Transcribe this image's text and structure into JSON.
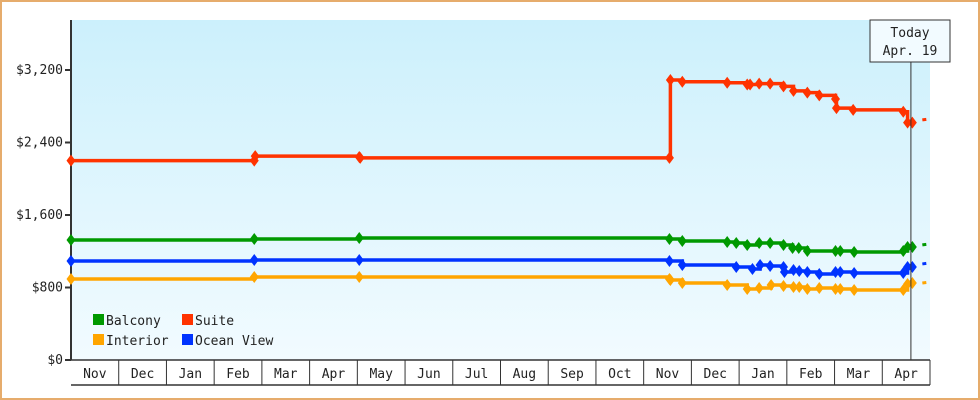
{
  "chart_data": {
    "type": "line",
    "line_style": "step",
    "x_unit": "months from start of first Nov",
    "x_tick_labels": [
      "Nov",
      "Dec",
      "Jan",
      "Feb",
      "Mar",
      "Apr",
      "May",
      "Jun",
      "Jul",
      "Aug",
      "Sep",
      "Oct",
      "Nov",
      "Dec",
      "Jan",
      "Feb",
      "Mar",
      "Apr"
    ],
    "y_ticks": [
      0,
      800,
      1600,
      2400,
      3200
    ],
    "y_tick_labels": [
      "$0",
      "$800",
      "$1,600",
      "$2,400",
      "$3,200"
    ],
    "ylim": [
      0,
      3200
    ],
    "grid": false,
    "legend_placement": "bottom-left",
    "today": {
      "label": "Today",
      "date": "Apr. 19",
      "x": 17.6
    },
    "series": [
      {
        "name": "Suite",
        "color": "#ff3300",
        "projection": 2650,
        "points": [
          [
            0,
            2200
          ],
          [
            3.84,
            2200
          ],
          [
            3.86,
            2250
          ],
          [
            6.04,
            2240
          ],
          [
            6.06,
            2230
          ],
          [
            12.54,
            2230
          ],
          [
            12.56,
            3090
          ],
          [
            12.81,
            3070
          ],
          [
            13.75,
            3060
          ],
          [
            14.17,
            3040
          ],
          [
            14.23,
            3040
          ],
          [
            14.42,
            3050
          ],
          [
            14.65,
            3050
          ],
          [
            14.93,
            3020
          ],
          [
            15.14,
            2970
          ],
          [
            15.43,
            2950
          ],
          [
            15.68,
            2920
          ],
          [
            16.02,
            2880
          ],
          [
            16.04,
            2780
          ],
          [
            16.39,
            2760
          ],
          [
            17.44,
            2740
          ],
          [
            17.53,
            2620
          ],
          [
            17.63,
            2620
          ]
        ]
      },
      {
        "name": "Balcony",
        "color": "#009900",
        "projection": 1270,
        "points": [
          [
            0,
            1324
          ],
          [
            3.84,
            1335
          ],
          [
            6.04,
            1346
          ],
          [
            12.54,
            1335
          ],
          [
            12.81,
            1313
          ],
          [
            13.75,
            1302
          ],
          [
            13.94,
            1291
          ],
          [
            14.17,
            1269
          ],
          [
            14.42,
            1291
          ],
          [
            14.65,
            1291
          ],
          [
            14.93,
            1269
          ],
          [
            15.12,
            1236
          ],
          [
            15.25,
            1236
          ],
          [
            15.43,
            1203
          ],
          [
            16.02,
            1203
          ],
          [
            16.12,
            1203
          ],
          [
            16.41,
            1192
          ],
          [
            17.44,
            1203
          ],
          [
            17.53,
            1247
          ],
          [
            17.63,
            1247
          ]
        ]
      },
      {
        "name": "Ocean View",
        "color": "#0033ff",
        "projection": 1060,
        "points": [
          [
            0,
            1092
          ],
          [
            3.84,
            1103
          ],
          [
            6.04,
            1103
          ],
          [
            12.54,
            1092
          ],
          [
            12.81,
            1048
          ],
          [
            13.94,
            1026
          ],
          [
            14.28,
            1004
          ],
          [
            14.44,
            1048
          ],
          [
            14.65,
            1037
          ],
          [
            14.93,
            1026
          ],
          [
            14.95,
            971
          ],
          [
            15.14,
            993
          ],
          [
            15.26,
            982
          ],
          [
            15.43,
            971
          ],
          [
            15.68,
            949
          ],
          [
            16.02,
            971
          ],
          [
            16.12,
            971
          ],
          [
            16.41,
            960
          ],
          [
            17.44,
            960
          ],
          [
            17.53,
            1026
          ],
          [
            17.63,
            1026
          ]
        ]
      },
      {
        "name": "Interior",
        "color": "#ffa500",
        "projection": 850,
        "points": [
          [
            0,
            894
          ],
          [
            3.84,
            916
          ],
          [
            6.04,
            916
          ],
          [
            12.54,
            894
          ],
          [
            12.56,
            883
          ],
          [
            12.81,
            850
          ],
          [
            13.75,
            828
          ],
          [
            14.17,
            784
          ],
          [
            14.42,
            795
          ],
          [
            14.67,
            828
          ],
          [
            14.93,
            817
          ],
          [
            15.14,
            806
          ],
          [
            15.26,
            806
          ],
          [
            15.43,
            784
          ],
          [
            15.68,
            795
          ],
          [
            16.02,
            784
          ],
          [
            16.12,
            784
          ],
          [
            16.41,
            773
          ],
          [
            17.44,
            773
          ],
          [
            17.53,
            839
          ],
          [
            17.63,
            850
          ]
        ]
      }
    ],
    "legend": [
      "Balcony",
      "Suite",
      "Interior",
      "Ocean View"
    ]
  }
}
